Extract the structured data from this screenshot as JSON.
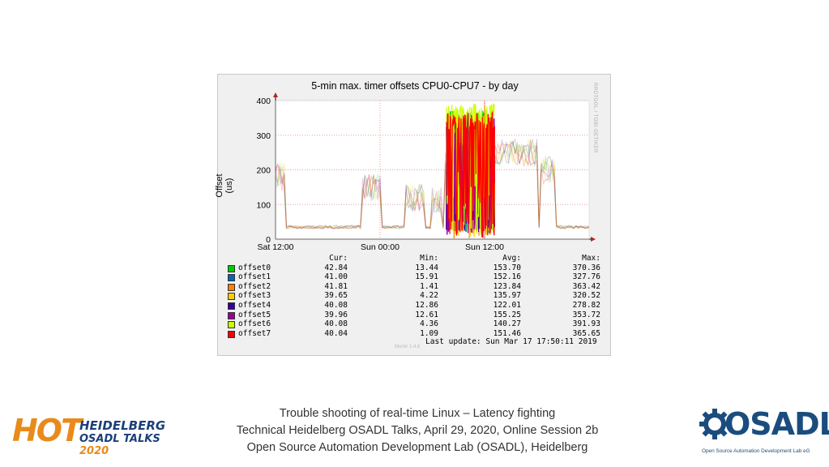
{
  "chart_data": {
    "type": "line",
    "title": "5-min max. timer offsets CPU0-CPU7 - by day",
    "ylabel": "Offset (us)",
    "xlabel": "",
    "ylim": [
      0,
      400
    ],
    "yticks": [
      "0",
      "100",
      "200",
      "300",
      "400"
    ],
    "xticks": [
      "Sat 12:00",
      "Sun 00:00",
      "Sun 12:00"
    ],
    "grid": true,
    "vertical_marker": "Sun 00:00",
    "side_label": "RRDTOOL / TOBI OETIKER",
    "footer_mark": "Munin 1.4.6",
    "legend_headers": {
      "cur": "Cur:",
      "min": "Min:",
      "avg": "Avg:",
      "max": "Max:"
    },
    "series": [
      {
        "name": "offset0",
        "color": "#00cc00",
        "cur": "42.84",
        "min": "13.44",
        "avg": "153.70",
        "max": "370.36"
      },
      {
        "name": "offset1",
        "color": "#0066b3",
        "cur": "41.00",
        "min": "15.91",
        "avg": "152.16",
        "max": "327.76"
      },
      {
        "name": "offset2",
        "color": "#ff8000",
        "cur": "41.81",
        "min": "1.41",
        "avg": "123.84",
        "max": "363.42"
      },
      {
        "name": "offset3",
        "color": "#ffcc00",
        "cur": "39.65",
        "min": "4.22",
        "avg": "135.97",
        "max": "320.52"
      },
      {
        "name": "offset4",
        "color": "#330099",
        "cur": "40.08",
        "min": "12.86",
        "avg": "122.01",
        "max": "278.82"
      },
      {
        "name": "offset5",
        "color": "#990099",
        "cur": "39.96",
        "min": "12.61",
        "avg": "155.25",
        "max": "353.72"
      },
      {
        "name": "offset6",
        "color": "#ccff00",
        "cur": "40.08",
        "min": "4.36",
        "avg": "140.27",
        "max": "391.93"
      },
      {
        "name": "offset7",
        "color": "#ff0000",
        "cur": "40.04",
        "min": "1.09",
        "avg": "151.46",
        "max": "365.65"
      }
    ],
    "last_update": "Last update: Sun Mar 17 17:50:11 2019"
  },
  "footer": {
    "line1": "Trouble shooting of real-time Linux – Latency fighting",
    "line2": "Technical Heidelberg OSADL Talks, April 29, 2020, Online Session 2b",
    "line3": "Open Source Automation Development Lab (OSADL), Heidelberg"
  },
  "hot_logo": {
    "word": "HOT",
    "line1": "HEIDELBERG",
    "line2": "OSADL TALKS",
    "year": "2020"
  },
  "osadl_logo": {
    "word": "OSADL",
    "subtitle": "Open Source Automation Development Lab eG"
  }
}
